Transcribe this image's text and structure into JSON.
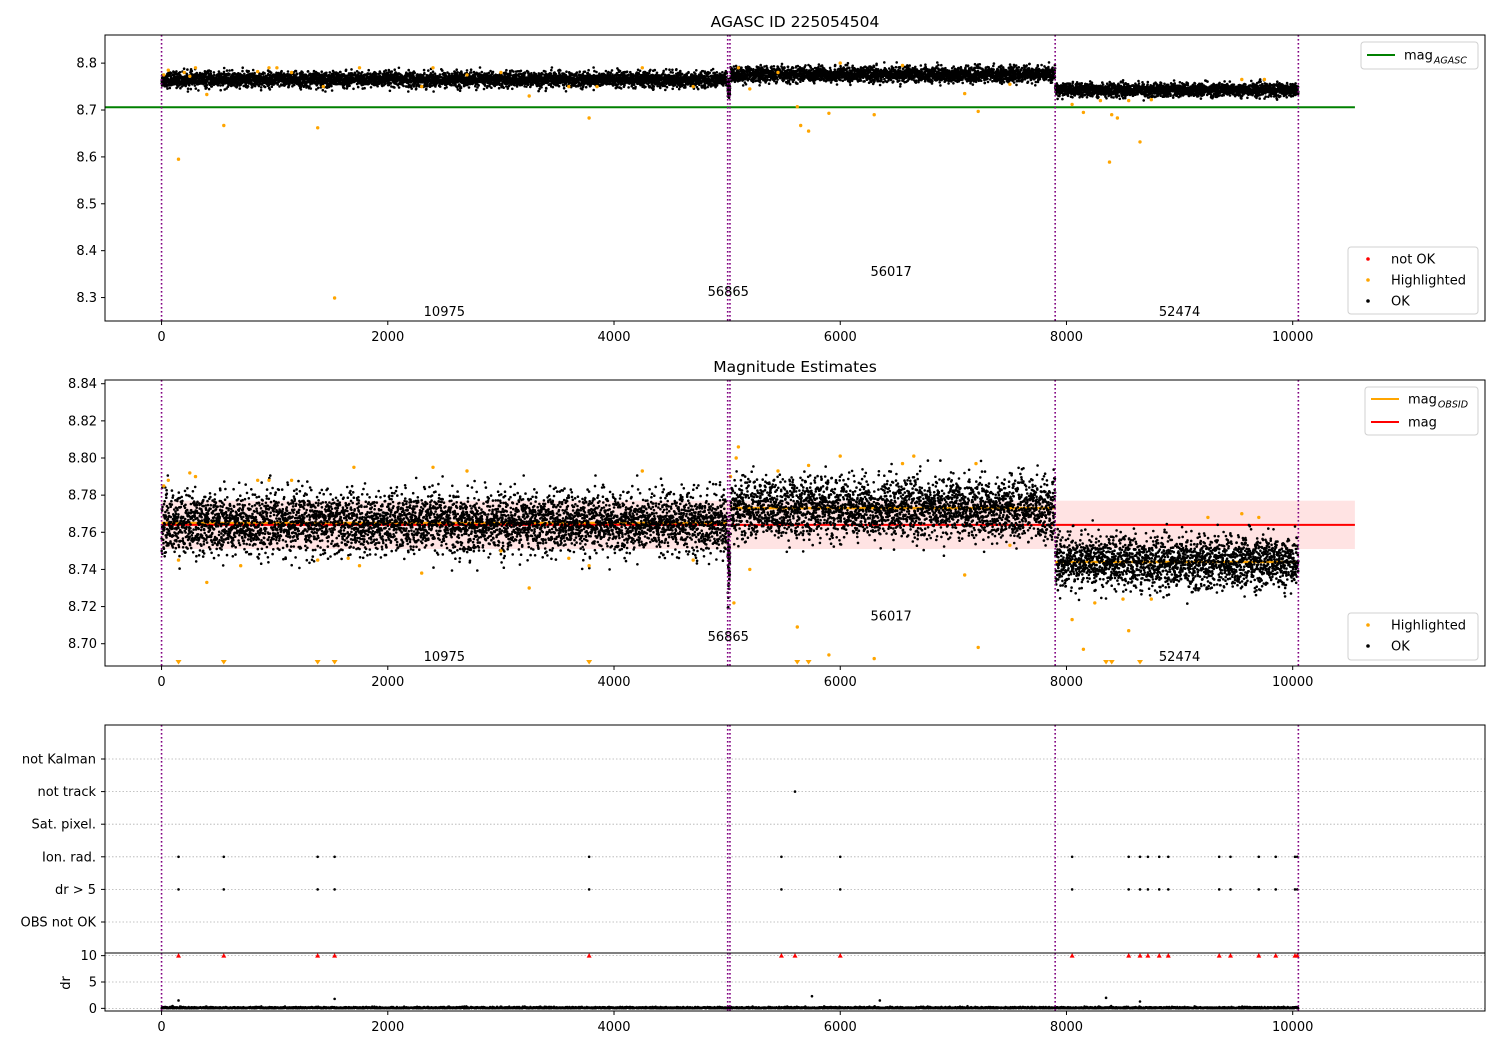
{
  "colors": {
    "ok": "#000000",
    "highlighted": "#ffa500",
    "not_ok": "#ff0000",
    "mag_agasc_line": "#008000",
    "mag_obsid_line": "#ffa500",
    "mag_line": "#ff0000",
    "mag_band": "#ffc0c0",
    "obs_boundary": "#800080",
    "grid": "#b0b0b0"
  },
  "obs_boundaries": [
    0,
    5005,
    5025,
    7900,
    10050
  ],
  "chart_data": [
    {
      "type": "scatter",
      "title": "AGASC ID 225054504",
      "xlim": [
        -500,
        11700
      ],
      "ylim": [
        8.25,
        8.86
      ],
      "xticks": [
        0,
        2000,
        4000,
        6000,
        8000,
        10000
      ],
      "yticks": [
        8.3,
        8.4,
        8.5,
        8.6,
        8.7,
        8.8
      ],
      "ytick_labels": [
        "8.3",
        "8.4",
        "8.5",
        "8.6",
        "8.7",
        "8.8"
      ],
      "mag_agasc": 8.706,
      "mag_agasc_span": [
        -500,
        10550
      ],
      "segments": [
        {
          "obsid": "10975",
          "x": [
            0,
            5000
          ],
          "mean": 8.765,
          "spread": 0.008
        },
        {
          "obsid": "56865",
          "x": [
            5005,
            5025
          ],
          "mean": 8.745,
          "spread": 0.012
        },
        {
          "obsid": "56017",
          "x": [
            5030,
            7900
          ],
          "mean": 8.776,
          "spread": 0.008
        },
        {
          "obsid": "52474",
          "x": [
            7900,
            10050
          ],
          "mean": 8.743,
          "spread": 0.007
        }
      ],
      "obsid_labels": [
        {
          "text": "10975",
          "x": 2500,
          "y": 8.27
        },
        {
          "text": "56865",
          "x": 5010,
          "y": 8.313
        },
        {
          "text": "56017",
          "x": 6450,
          "y": 8.356
        },
        {
          "text": "52474",
          "x": 9000,
          "y": 8.27
        }
      ],
      "highlighted_points": [
        [
          20,
          8.775
        ],
        [
          60,
          8.785
        ],
        [
          150,
          8.595
        ],
        [
          200,
          8.78
        ],
        [
          250,
          8.772
        ],
        [
          300,
          8.79
        ],
        [
          400,
          8.733
        ],
        [
          550,
          8.667
        ],
        [
          850,
          8.782
        ],
        [
          950,
          8.79
        ],
        [
          1020,
          8.79
        ],
        [
          1150,
          8.78
        ],
        [
          1380,
          8.662
        ],
        [
          1430,
          8.75
        ],
        [
          1530,
          8.299
        ],
        [
          1750,
          8.79
        ],
        [
          2300,
          8.75
        ],
        [
          2400,
          8.79
        ],
        [
          2700,
          8.775
        ],
        [
          3000,
          8.78
        ],
        [
          3250,
          8.73
        ],
        [
          3600,
          8.75
        ],
        [
          3780,
          8.683
        ],
        [
          3850,
          8.75
        ],
        [
          4250,
          8.79
        ],
        [
          4700,
          8.75
        ],
        [
          5100,
          8.79
        ],
        [
          5200,
          8.745
        ],
        [
          5450,
          8.78
        ],
        [
          5620,
          8.707
        ],
        [
          5650,
          8.667
        ],
        [
          5720,
          8.655
        ],
        [
          5900,
          8.693
        ],
        [
          6000,
          8.8
        ],
        [
          6300,
          8.69
        ],
        [
          6550,
          8.795
        ],
        [
          7100,
          8.735
        ],
        [
          7220,
          8.697
        ],
        [
          7500,
          8.755
        ],
        [
          8050,
          8.712
        ],
        [
          8150,
          8.695
        ],
        [
          8300,
          8.72
        ],
        [
          8380,
          8.589
        ],
        [
          8400,
          8.69
        ],
        [
          8450,
          8.683
        ],
        [
          8550,
          8.72
        ],
        [
          8650,
          8.632
        ],
        [
          8750,
          8.722
        ],
        [
          9550,
          8.765
        ],
        [
          9750,
          8.765
        ]
      ],
      "legend_upper": [
        {
          "label": "mag",
          "sub": "AGASC",
          "color_key": "mag_agasc_line"
        }
      ],
      "legend_lower": [
        {
          "label": "not OK",
          "color_key": "not_ok"
        },
        {
          "label": "Highlighted",
          "color_key": "highlighted"
        },
        {
          "label": "OK",
          "color_key": "ok"
        }
      ]
    },
    {
      "type": "scatter",
      "title": "Magnitude Estimates",
      "xlim": [
        -500,
        11700
      ],
      "ylim": [
        8.688,
        8.842
      ],
      "xticks": [
        0,
        2000,
        4000,
        6000,
        8000,
        10000
      ],
      "yticks": [
        8.7,
        8.72,
        8.74,
        8.76,
        8.78,
        8.8,
        8.82,
        8.84
      ],
      "ytick_labels": [
        "8.70",
        "8.72",
        "8.74",
        "8.76",
        "8.78",
        "8.80",
        "8.82",
        "8.84"
      ],
      "mag": 8.764,
      "mag_band": [
        8.751,
        8.777
      ],
      "mag_span": [
        0,
        10550
      ],
      "segments": [
        {
          "obsid": "10975",
          "x": [
            0,
            5000
          ],
          "mean": 8.765,
          "spread": 0.008
        },
        {
          "obsid": "56865",
          "x": [
            5005,
            5025
          ],
          "mean": 8.745,
          "spread": 0.012
        },
        {
          "obsid": "56017",
          "x": [
            5030,
            7900
          ],
          "mean": 8.773,
          "spread": 0.008
        },
        {
          "obsid": "52474",
          "x": [
            7900,
            10050
          ],
          "mean": 8.744,
          "spread": 0.007
        }
      ],
      "obsid_labels": [
        {
          "text": "10975",
          "x": 2500,
          "y": 8.693
        },
        {
          "text": "56865",
          "x": 5010,
          "y": 8.704
        },
        {
          "text": "56017",
          "x": 6450,
          "y": 8.715
        },
        {
          "text": "52474",
          "x": 9000,
          "y": 8.693
        }
      ],
      "highlighted_points": [
        [
          20,
          8.785
        ],
        [
          60,
          8.788
        ],
        [
          150,
          8.745
        ],
        [
          250,
          8.792
        ],
        [
          300,
          8.79
        ],
        [
          400,
          8.733
        ],
        [
          700,
          8.742
        ],
        [
          850,
          8.788
        ],
        [
          950,
          8.788
        ],
        [
          1150,
          8.788
        ],
        [
          1380,
          8.745
        ],
        [
          1650,
          8.746
        ],
        [
          1700,
          8.795
        ],
        [
          1750,
          8.742
        ],
        [
          2300,
          8.738
        ],
        [
          2400,
          8.795
        ],
        [
          2700,
          8.793
        ],
        [
          3000,
          8.75
        ],
        [
          3250,
          8.73
        ],
        [
          3600,
          8.746
        ],
        [
          3780,
          8.742
        ],
        [
          4250,
          8.793
        ],
        [
          4700,
          8.745
        ],
        [
          5030,
          8.79
        ],
        [
          5060,
          8.722
        ],
        [
          5080,
          8.8
        ],
        [
          5100,
          8.806
        ],
        [
          5200,
          8.74
        ],
        [
          5450,
          8.793
        ],
        [
          5620,
          8.709
        ],
        [
          5720,
          8.796
        ],
        [
          5900,
          8.694
        ],
        [
          6000,
          8.801
        ],
        [
          6300,
          8.692
        ],
        [
          6550,
          8.797
        ],
        [
          6650,
          8.801
        ],
        [
          7100,
          8.737
        ],
        [
          7200,
          8.797
        ],
        [
          7220,
          8.698
        ],
        [
          7500,
          8.753
        ],
        [
          8050,
          8.713
        ],
        [
          8150,
          8.697
        ],
        [
          8250,
          8.722
        ],
        [
          8500,
          8.724
        ],
        [
          8550,
          8.707
        ],
        [
          8750,
          8.724
        ],
        [
          9250,
          8.768
        ],
        [
          9550,
          8.77
        ],
        [
          9700,
          8.768
        ]
      ],
      "highlighted_offscale_x": [
        150,
        550,
        1380,
        1530,
        3780,
        5620,
        5720,
        8350,
        8400,
        8650
      ],
      "legend_upper": [
        {
          "label": "mag",
          "sub": "OBSID",
          "color_key": "mag_obsid_line"
        },
        {
          "label": "mag",
          "sub": "",
          "color_key": "mag_line"
        }
      ],
      "legend_lower": [
        {
          "label": "Highlighted",
          "color_key": "highlighted"
        },
        {
          "label": "OK",
          "color_key": "ok"
        }
      ]
    },
    {
      "type": "scatter",
      "title": "",
      "xlim": [
        -500,
        11700
      ],
      "categories": [
        "not Kalman",
        "not track",
        "Sat. pixel.",
        "Ion. rad.",
        "dr > 5",
        "OBS not OK"
      ],
      "flag_points": {
        "not Kalman": [],
        "not track": [
          5600
        ],
        "Sat. pixel.": [],
        "Ion. rad.": [
          150,
          550,
          1380,
          1530,
          3780,
          5480,
          6000,
          8050,
          8550,
          8650,
          8720,
          8820,
          8900,
          9350,
          9450,
          9700,
          9850,
          10020,
          10040
        ],
        "dr > 5": [
          150,
          550,
          1380,
          1530,
          3780,
          5480,
          6000,
          8050,
          8550,
          8650,
          8720,
          8820,
          8900,
          9350,
          9450,
          9700,
          9850,
          10020,
          10040
        ],
        "OBS not OK": []
      }
    },
    {
      "type": "scatter",
      "title": "",
      "ylabel": "dr",
      "xlim": [
        -500,
        11700
      ],
      "ylim": [
        -0.5,
        10.5
      ],
      "xticks": [
        0,
        2000,
        4000,
        6000,
        8000,
        10000
      ],
      "yticks": [
        0,
        5,
        10
      ],
      "ytick_labels": [
        "0",
        "5",
        "10"
      ],
      "clipped_x": [
        150,
        550,
        1380,
        1530,
        3780,
        5480,
        5600,
        6000,
        8050,
        8550,
        8650,
        8720,
        8820,
        8900,
        9350,
        9450,
        9700,
        9850,
        10020,
        10040
      ],
      "outliers": [
        [
          150,
          1.5
        ],
        [
          1530,
          1.8
        ],
        [
          5750,
          2.3
        ],
        [
          6350,
          1.5
        ],
        [
          8350,
          2.0
        ],
        [
          8650,
          1.3
        ]
      ]
    }
  ]
}
